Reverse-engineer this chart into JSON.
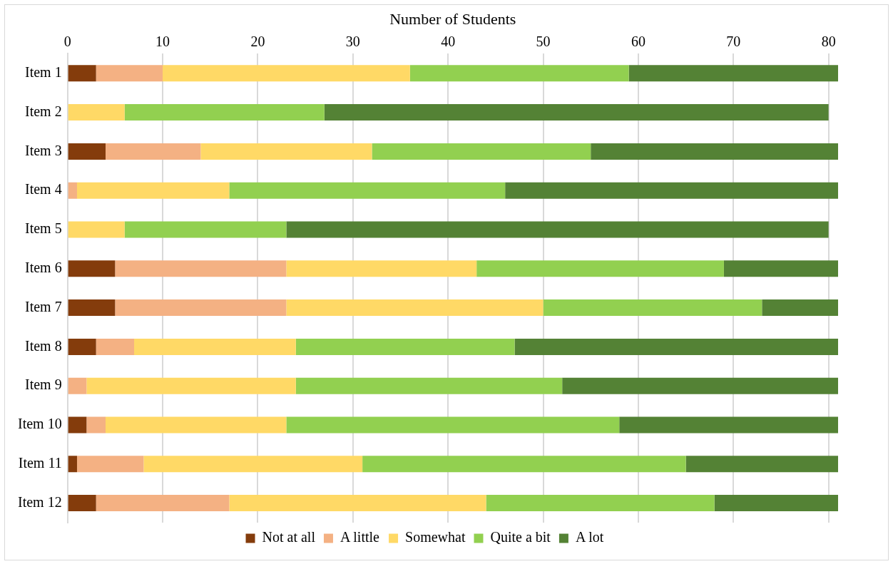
{
  "chart_data": {
    "type": "bar",
    "orientation": "horizontal",
    "stacked": true,
    "xlabel": "Number of Students",
    "categories": [
      "Item 1",
      "Item 2",
      "Item 3",
      "Item 4",
      "Item 5",
      "Item 6",
      "Item 7",
      "Item 8",
      "Item 9",
      "Item 10",
      "Item 11",
      "Item 12"
    ],
    "series": [
      {
        "name": "Not at all",
        "color": "#843c0c",
        "values": [
          3,
          0,
          4,
          0,
          0,
          5,
          5,
          3,
          0,
          2,
          1,
          3
        ]
      },
      {
        "name": "A little",
        "color": "#f4b183",
        "values": [
          7,
          0,
          10,
          1,
          0,
          18,
          18,
          4,
          2,
          2,
          7,
          14
        ]
      },
      {
        "name": "Somewhat",
        "color": "#ffd966",
        "values": [
          26,
          6,
          18,
          16,
          6,
          20,
          27,
          17,
          22,
          19,
          23,
          27
        ]
      },
      {
        "name": "Quite a bit",
        "color": "#92d050",
        "values": [
          23,
          21,
          23,
          29,
          17,
          26,
          23,
          23,
          28,
          35,
          34,
          24
        ]
      },
      {
        "name": "A lot",
        "color": "#548235",
        "values": [
          22,
          53,
          26,
          35,
          57,
          12,
          8,
          34,
          29,
          23,
          16,
          13
        ]
      }
    ],
    "xlim": [
      0,
      81
    ],
    "xticks": [
      0,
      10,
      20,
      30,
      40,
      50,
      60,
      70,
      80
    ],
    "grid": "x",
    "legend": "bottom"
  }
}
